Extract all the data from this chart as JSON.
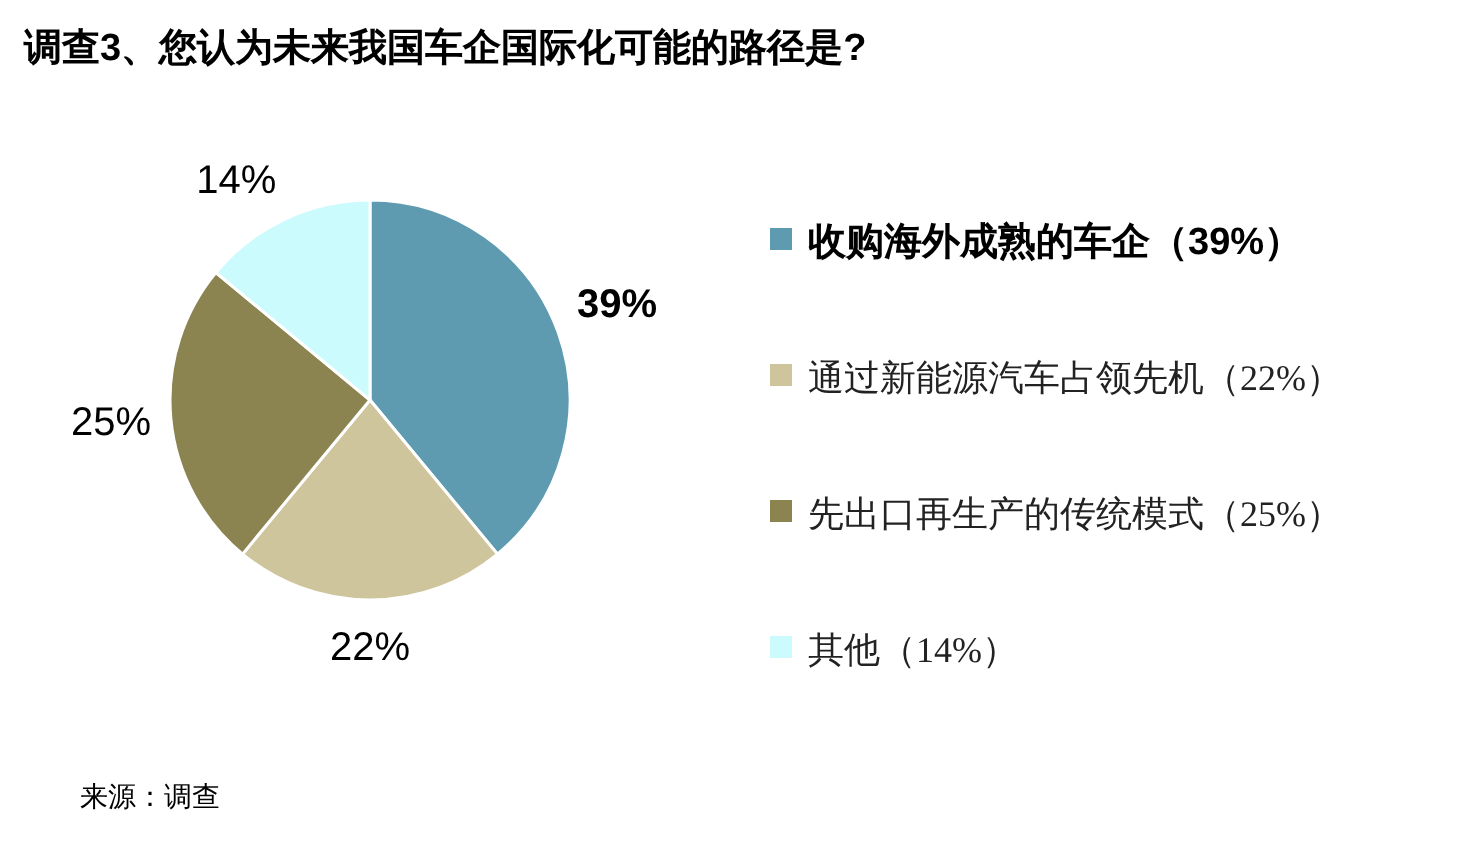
{
  "chart_data": {
    "type": "pie",
    "title": "调查3、您认为未来我国车企国际化可能的路径是?",
    "categories": [
      "收购海外成熟的车企（39%）",
      "通过新能源汽车占领先机（22%）",
      "先出口再生产的传统模式（25%）",
      "其他（14%）"
    ],
    "values": [
      39,
      22,
      25,
      14
    ],
    "colors": [
      "#5e9bb0",
      "#cfc59c",
      "#8b8350",
      "#cbfbfd"
    ],
    "value_labels": [
      "39%",
      "22%",
      "25%",
      "14%"
    ],
    "legend": "right",
    "annotations": [
      "来源：调查"
    ]
  }
}
